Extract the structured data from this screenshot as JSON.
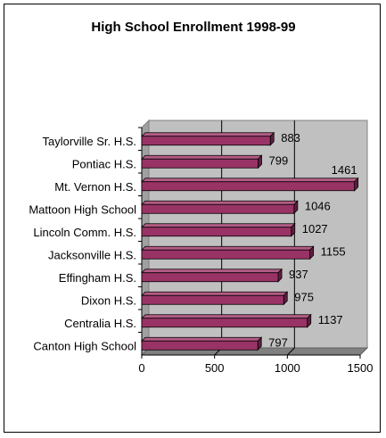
{
  "chart_data": {
    "type": "bar",
    "orientation": "horizontal",
    "style": "3d",
    "title": "High School Enrollment 1998-99",
    "xlabel": "",
    "ylabel": "",
    "categories": [
      "Taylorville Sr. H.S.",
      "Pontiac H.S.",
      "Mt. Vernon H.S.",
      "Mattoon High School",
      "Lincoln Comm. H.S.",
      "Jacksonville H.S.",
      "Effingham H.S.",
      "Dixon H.S.",
      "Centralia H.S.",
      "Canton High School"
    ],
    "values": [
      883,
      799,
      1461,
      1046,
      1027,
      1155,
      937,
      975,
      1137,
      797
    ],
    "xlim": [
      0,
      1500
    ],
    "xticks": [
      "0",
      "500",
      "1000",
      "1500"
    ],
    "grid": true,
    "legend": "none",
    "colors": {
      "bar_front": "#993366",
      "bar_top": "#b35c85",
      "bar_side": "#5e1f3f",
      "plot_wall": "#c0c0c0",
      "plot_floor": "#808080",
      "gridline": "#000000"
    }
  }
}
